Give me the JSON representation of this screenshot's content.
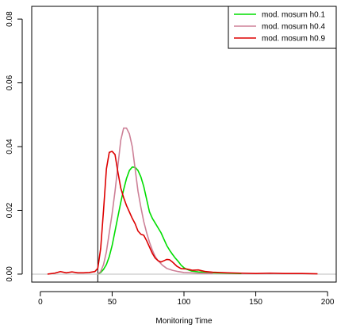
{
  "chart_data": {
    "type": "line",
    "title": "",
    "xlabel": "Monitoring Time",
    "ylabel": "",
    "xlim": [
      -6,
      206
    ],
    "ylim": [
      -0.0025,
      0.084
    ],
    "x_ticks": [
      0,
      50,
      100,
      150,
      200
    ],
    "y_ticks": [
      0.0,
      0.02,
      0.04,
      0.06,
      0.08
    ],
    "x_tick_labels": [
      "0",
      "50",
      "100",
      "150",
      "200"
    ],
    "y_tick_labels": [
      "0.00",
      "0.02",
      "0.04",
      "0.06",
      "0.08"
    ],
    "grid": false,
    "legend_position": "top-right",
    "reference_lines": [
      {
        "orientation": "vertical",
        "value": 40,
        "color": "#000000"
      },
      {
        "orientation": "horizontal",
        "value": 0,
        "color": "#bebebe"
      }
    ],
    "series": [
      {
        "name": "mod. mosum h0.1",
        "color": "#00dd00",
        "points": [
          [
            40,
            0
          ],
          [
            42,
            0.0005
          ],
          [
            44,
            0.0015
          ],
          [
            46,
            0.003
          ],
          [
            48,
            0.0055
          ],
          [
            50,
            0.009
          ],
          [
            52,
            0.0135
          ],
          [
            54,
            0.018
          ],
          [
            56,
            0.0225
          ],
          [
            58,
            0.0265
          ],
          [
            60,
            0.03
          ],
          [
            62,
            0.0325
          ],
          [
            64,
            0.0336
          ],
          [
            66,
            0.0335
          ],
          [
            68,
            0.0325
          ],
          [
            70,
            0.0305
          ],
          [
            72,
            0.0275
          ],
          [
            74,
            0.0235
          ],
          [
            76,
            0.0195
          ],
          [
            78,
            0.0175
          ],
          [
            80,
            0.016
          ],
          [
            82,
            0.0145
          ],
          [
            84,
            0.013
          ],
          [
            86,
            0.011
          ],
          [
            88,
            0.009
          ],
          [
            90,
            0.0075
          ],
          [
            92,
            0.0062
          ],
          [
            94,
            0.005
          ],
          [
            96,
            0.004
          ],
          [
            98,
            0.0028
          ],
          [
            100,
            0.002
          ],
          [
            102,
            0.0015
          ],
          [
            105,
            0.001
          ],
          [
            110,
            0.0007
          ],
          [
            120,
            0.0004
          ],
          [
            130,
            0.0003
          ],
          [
            140,
            0.0002
          ]
        ]
      },
      {
        "name": "mod. mosum h0.4",
        "color": "#cd8097",
        "points": [
          [
            40,
            0
          ],
          [
            42,
            0.0008
          ],
          [
            44,
            0.003
          ],
          [
            46,
            0.007
          ],
          [
            48,
            0.013
          ],
          [
            50,
            0.019
          ],
          [
            52,
            0.026
          ],
          [
            54,
            0.034
          ],
          [
            56,
            0.042
          ],
          [
            58,
            0.0458
          ],
          [
            60,
            0.0458
          ],
          [
            62,
            0.044
          ],
          [
            64,
            0.04
          ],
          [
            66,
            0.033
          ],
          [
            68,
            0.026
          ],
          [
            70,
            0.021
          ],
          [
            72,
            0.0165
          ],
          [
            74,
            0.013
          ],
          [
            76,
            0.01
          ],
          [
            78,
            0.0075
          ],
          [
            80,
            0.0055
          ],
          [
            82,
            0.0042
          ],
          [
            85,
            0.0028
          ],
          [
            88,
            0.0018
          ],
          [
            92,
            0.0012
          ],
          [
            96,
            0.0008
          ],
          [
            100,
            0.0005
          ],
          [
            110,
            0.0003
          ],
          [
            120,
            0.0002
          ]
        ]
      },
      {
        "name": "mod. mosum h0.9",
        "color": "#dd0000",
        "points": [
          [
            5,
            0
          ],
          [
            10,
            0.0003
          ],
          [
            14,
            0.0008
          ],
          [
            18,
            0.0004
          ],
          [
            22,
            0.0007
          ],
          [
            26,
            0.0004
          ],
          [
            30,
            0.0004
          ],
          [
            34,
            0.0005
          ],
          [
            38,
            0.0008
          ],
          [
            40,
            0.0018
          ],
          [
            42,
            0.008
          ],
          [
            44,
            0.02
          ],
          [
            46,
            0.033
          ],
          [
            48,
            0.0382
          ],
          [
            50,
            0.0385
          ],
          [
            52,
            0.0375
          ],
          [
            54,
            0.032
          ],
          [
            56,
            0.027
          ],
          [
            58,
            0.024
          ],
          [
            60,
            0.0215
          ],
          [
            62,
            0.0195
          ],
          [
            64,
            0.0175
          ],
          [
            66,
            0.0158
          ],
          [
            68,
            0.0135
          ],
          [
            70,
            0.0125
          ],
          [
            72,
            0.0122
          ],
          [
            74,
            0.0105
          ],
          [
            76,
            0.0085
          ],
          [
            78,
            0.0065
          ],
          [
            80,
            0.005
          ],
          [
            82,
            0.0042
          ],
          [
            84,
            0.0038
          ],
          [
            86,
            0.0042
          ],
          [
            88,
            0.0046
          ],
          [
            90,
            0.0045
          ],
          [
            92,
            0.0038
          ],
          [
            95,
            0.0025
          ],
          [
            98,
            0.0017
          ],
          [
            102,
            0.0016
          ],
          [
            106,
            0.0012
          ],
          [
            110,
            0.0013
          ],
          [
            115,
            0.0008
          ],
          [
            120,
            0.0006
          ],
          [
            130,
            0.0004
          ],
          [
            140,
            0.0003
          ],
          [
            150,
            0.0002
          ],
          [
            160,
            0.0003
          ],
          [
            170,
            0.0002
          ],
          [
            180,
            0.0002
          ],
          [
            193,
            0.0001
          ]
        ]
      }
    ]
  }
}
